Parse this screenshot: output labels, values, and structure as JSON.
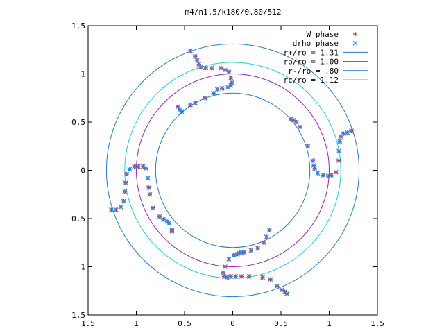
{
  "chart_data": {
    "type": "scatter",
    "title": "m4/n1.5/k180/0.80/512",
    "xlabel": "",
    "ylabel": "",
    "xlim": [
      -1.5,
      1.5
    ],
    "ylim": [
      -1.5,
      1.5
    ],
    "x_ticks": [
      -1.5,
      -1,
      -0.5,
      0,
      0.5,
      1,
      1.5
    ],
    "y_ticks": [
      -1.5,
      -1,
      -0.5,
      0,
      0.5,
      1,
      1.5
    ],
    "x_tick_labels": [
      "1.5",
      "1",
      "0.5",
      "0",
      "0.5",
      "1",
      "1.5"
    ],
    "y_tick_labels": [
      "1.5",
      "1",
      "0.5",
      "0",
      "0.5",
      "1",
      "1.5"
    ],
    "grid": false,
    "legend_position": "top-right",
    "circles": [
      {
        "name": "r+/ro = 1.31",
        "radius": 1.31,
        "color": "#1f7bd6"
      },
      {
        "name": "ro/ro = 1.00",
        "radius": 1.0,
        "color": "#a020c0"
      },
      {
        "name": "r-/ro = .80",
        "radius": 0.8,
        "color": "#1f7bd6"
      },
      {
        "name": "rc/ro = 1.12",
        "radius": 1.12,
        "color": "#20d0d8"
      }
    ],
    "series": [
      {
        "name": "W phase",
        "marker": "+",
        "color": "#e8202a",
        "x": [
          -0.44,
          -0.39,
          -0.37,
          -0.35,
          -0.33,
          -0.28,
          -0.22,
          -0.12,
          -0.08,
          -0.04,
          -0.02,
          -0.01,
          -0.02,
          -0.05,
          -0.11,
          -0.16,
          -0.2,
          -0.29,
          -0.39,
          -0.44,
          -0.53,
          -0.55,
          -0.57,
          0.6,
          0.63,
          0.66,
          0.7,
          0.78,
          0.83,
          0.84,
          0.85,
          0.88,
          0.94,
          0.99,
          1.02,
          1.07,
          1.1,
          1.1,
          1.11,
          1.12,
          1.15,
          1.19,
          1.23,
          -1.26,
          -1.21,
          -1.16,
          -1.13,
          -1.12,
          -1.11,
          -1.1,
          -1.07,
          -1.02,
          -0.98,
          -0.93,
          -0.9,
          -0.88,
          -0.87,
          -0.86,
          -0.83,
          -0.76,
          -0.72,
          -0.68,
          -0.66,
          -0.63,
          -0.63,
          0.38,
          0.35,
          0.32,
          0.26,
          0.19,
          0.12,
          0.09,
          0.07,
          0.05,
          0.01,
          -0.04,
          -0.08,
          -0.1,
          -0.09,
          -0.06,
          -0.02,
          0.03,
          0.09,
          0.17,
          0.31,
          0.39,
          0.46,
          0.51,
          0.54,
          0.56
        ],
        "y": [
          1.24,
          1.18,
          1.14,
          1.1,
          1.07,
          1.06,
          1.06,
          1.06,
          1.04,
          1.02,
          0.96,
          0.91,
          0.88,
          0.86,
          0.85,
          0.84,
          0.8,
          0.75,
          0.7,
          0.68,
          0.61,
          0.63,
          0.66,
          0.53,
          0.52,
          0.5,
          0.45,
          0.25,
          0.1,
          0.05,
          0.02,
          -0.03,
          -0.05,
          -0.06,
          -0.05,
          -0.02,
          0.1,
          0.2,
          0.3,
          0.35,
          0.38,
          0.39,
          0.41,
          -0.41,
          -0.41,
          -0.38,
          -0.32,
          -0.22,
          -0.13,
          -0.04,
          0.01,
          0.04,
          0.04,
          0.04,
          0.02,
          -0.08,
          -0.18,
          -0.25,
          -0.39,
          -0.48,
          -0.51,
          -0.53,
          -0.55,
          -0.62,
          -0.63,
          -0.62,
          -0.69,
          -0.75,
          -0.81,
          -0.83,
          -0.85,
          -0.85,
          -0.86,
          -0.87,
          -0.88,
          -0.92,
          -1.0,
          -1.06,
          -1.1,
          -1.11,
          -1.1,
          -1.1,
          -1.1,
          -1.1,
          -1.11,
          -1.13,
          -1.2,
          -1.24,
          -1.26,
          -1.28
        ]
      },
      {
        "name": "drho phase",
        "marker": "x",
        "color": "#1f8ff0",
        "x": [
          -0.44,
          -0.39,
          -0.37,
          -0.35,
          -0.33,
          -0.28,
          -0.22,
          -0.12,
          -0.08,
          -0.04,
          -0.02,
          -0.01,
          -0.02,
          -0.05,
          -0.11,
          -0.16,
          -0.2,
          -0.29,
          -0.39,
          -0.44,
          -0.53,
          -0.55,
          -0.57,
          0.6,
          0.63,
          0.66,
          0.7,
          0.78,
          0.83,
          0.84,
          0.85,
          0.88,
          0.94,
          0.99,
          1.02,
          1.07,
          1.1,
          1.1,
          1.11,
          1.12,
          1.15,
          1.19,
          1.23,
          -1.26,
          -1.21,
          -1.16,
          -1.13,
          -1.12,
          -1.11,
          -1.1,
          -1.07,
          -1.02,
          -0.98,
          -0.93,
          -0.9,
          -0.88,
          -0.87,
          -0.86,
          -0.83,
          -0.76,
          -0.72,
          -0.68,
          -0.66,
          -0.63,
          -0.63,
          0.38,
          0.35,
          0.32,
          0.26,
          0.19,
          0.12,
          0.09,
          0.07,
          0.05,
          0.01,
          -0.04,
          -0.08,
          -0.1,
          -0.09,
          -0.06,
          -0.02,
          0.03,
          0.09,
          0.17,
          0.31,
          0.39,
          0.46,
          0.51,
          0.54,
          0.56
        ],
        "y": [
          1.24,
          1.18,
          1.14,
          1.1,
          1.07,
          1.06,
          1.06,
          1.06,
          1.04,
          1.02,
          0.96,
          0.91,
          0.88,
          0.86,
          0.85,
          0.84,
          0.8,
          0.75,
          0.7,
          0.68,
          0.61,
          0.63,
          0.66,
          0.53,
          0.52,
          0.5,
          0.45,
          0.25,
          0.1,
          0.05,
          0.02,
          -0.03,
          -0.05,
          -0.06,
          -0.05,
          -0.02,
          0.1,
          0.2,
          0.3,
          0.35,
          0.38,
          0.39,
          0.41,
          -0.41,
          -0.41,
          -0.38,
          -0.32,
          -0.22,
          -0.13,
          -0.04,
          0.01,
          0.04,
          0.04,
          0.04,
          0.02,
          -0.08,
          -0.18,
          -0.25,
          -0.39,
          -0.48,
          -0.51,
          -0.53,
          -0.55,
          -0.62,
          -0.63,
          -0.62,
          -0.69,
          -0.75,
          -0.81,
          -0.83,
          -0.85,
          -0.85,
          -0.86,
          -0.87,
          -0.88,
          -0.92,
          -1.0,
          -1.06,
          -1.1,
          -1.11,
          -1.1,
          -1.1,
          -1.1,
          -1.1,
          -1.11,
          -1.13,
          -1.2,
          -1.24,
          -1.26,
          -1.28
        ]
      }
    ],
    "legend": [
      {
        "label": "W phase",
        "kind": "marker",
        "marker": "+",
        "color": "#e8202a"
      },
      {
        "label": "drho phase",
        "kind": "marker",
        "marker": "x",
        "color": "#1f8ff0"
      },
      {
        "label": "r+/ro = 1.31",
        "kind": "line",
        "color": "#1f7bd6"
      },
      {
        "label": "ro/ro = 1.00",
        "kind": "line",
        "color": "#a020c0"
      },
      {
        "label": "r-/ro = .80",
        "kind": "line",
        "color": "#1f7bd6"
      },
      {
        "label": "rc/ro = 1.12",
        "kind": "line",
        "color": "#20d0d8"
      }
    ]
  }
}
